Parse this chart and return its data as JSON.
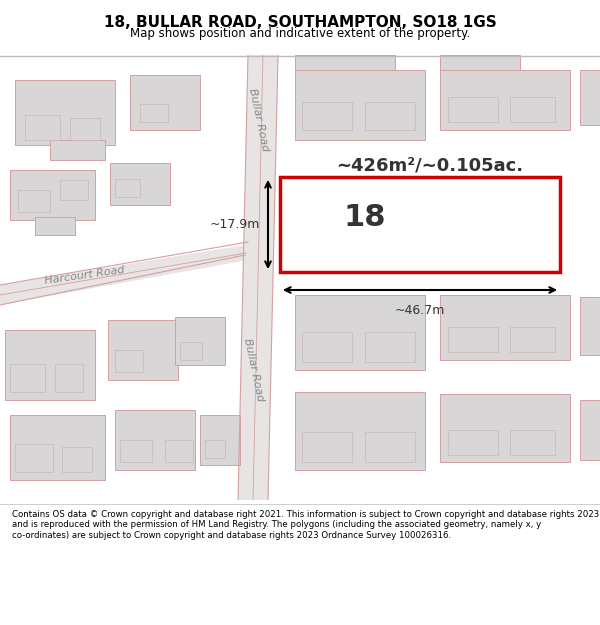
{
  "title": "18, BULLAR ROAD, SOUTHAMPTON, SO18 1GS",
  "subtitle": "Map shows position and indicative extent of the property.",
  "footer": "Contains OS data © Crown copyright and database right 2021. This information is subject to Crown copyright and database rights 2023 and is reproduced with the permission of HM Land Registry. The polygons (including the associated geometry, namely x, y co-ordinates) are subject to Crown copyright and database rights 2023 Ordnance Survey 100026316.",
  "bg_map_color": "#f0eded",
  "road_color": "#d4d0d0",
  "building_fill": "#d8d6d6",
  "building_edge": "#c8b8b8",
  "road_line_color": "#d4a0a0",
  "highlight_fill": "#ffffff",
  "highlight_edge": "#cc0000",
  "area_text": "~426m²/~0.105ac.",
  "number_text": "18",
  "dim_width": "~46.7m",
  "dim_height": "~17.9m",
  "footer_bg": "#ffffff",
  "map_border_color": "#aaaaaa"
}
